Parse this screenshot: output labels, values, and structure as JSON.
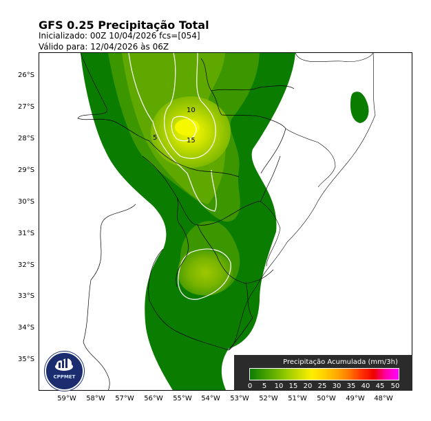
{
  "title": "GFS 0.25 Precipitação Total",
  "init_line": "Inicializado: 00Z  10/04/2026    fcs=[054]",
  "valid_line": "Válido para: 12/04/2026 às 06Z",
  "lat_labels": [
    "26°S",
    "27°S",
    "28°S",
    "29°S",
    "30°S",
    "31°S",
    "32°S",
    "33°S",
    "34°S",
    "35°S"
  ],
  "lon_labels": [
    "59°W",
    "58°W",
    "57°W",
    "56°W",
    "55°W",
    "54°W",
    "53°W",
    "52°W",
    "51°W",
    "50°W",
    "49°W",
    "48°W"
  ],
  "contour_labels": [
    "5",
    "10",
    "15"
  ],
  "legend": {
    "title": "Precipitação Acumulada (mm/3h)",
    "ticks": [
      "0",
      "5",
      "10",
      "15",
      "20",
      "25",
      "30",
      "35",
      "40",
      "45",
      "50"
    ],
    "colors": [
      "#0a7d00",
      "#3a9a00",
      "#66b200",
      "#99cc00",
      "#ccdd00",
      "#ffee00",
      "#ffd000",
      "#ffaa00",
      "#ff7700",
      "#ff3300",
      "#ee0000",
      "#ff00aa",
      "#ff00ff"
    ]
  },
  "logo": {
    "name": "CPPMET"
  },
  "colors": {
    "rain_base": "#0a7d00",
    "rain_light": "#5fa800",
    "rain_mid": "#9ac400",
    "rain_core": "#eef200",
    "contour": "#ffffff",
    "border": "#000000"
  }
}
